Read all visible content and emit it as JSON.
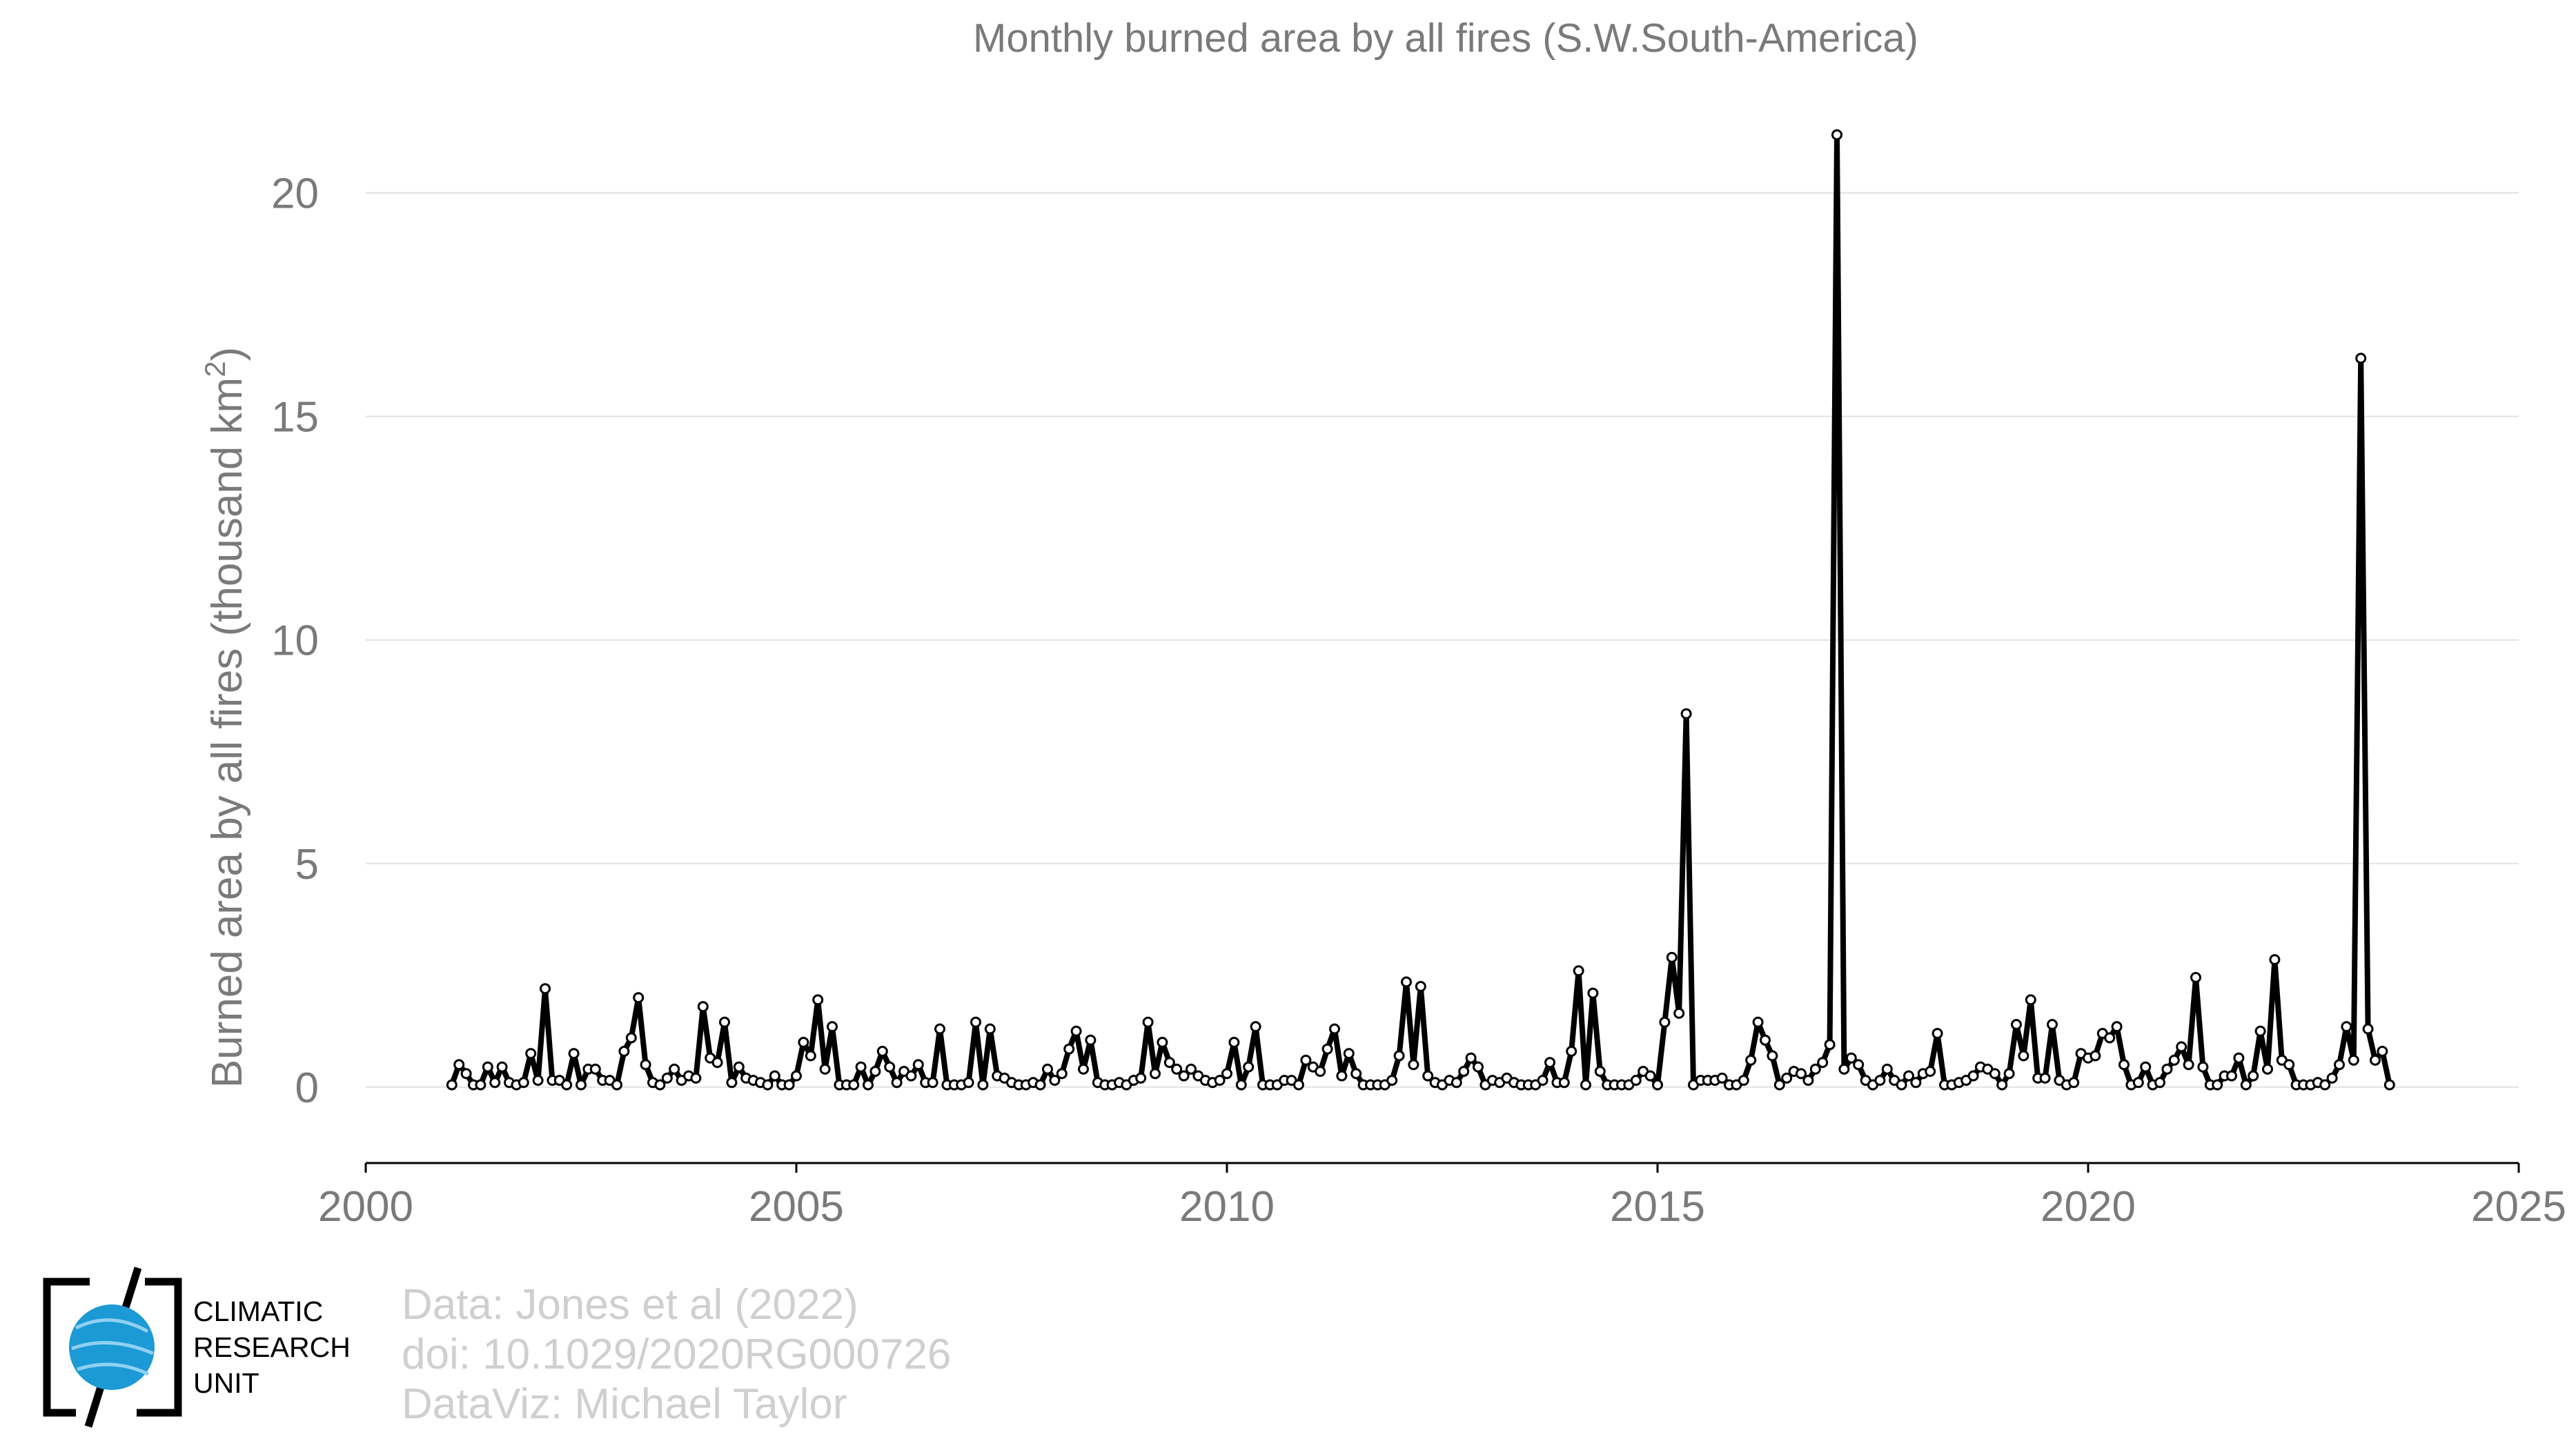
{
  "chart_data": {
    "type": "line",
    "title": "Monthly burned area by all fires (S.W.South-America)",
    "ylabel": "Burned area by all fires (thousand km",
    "ylabel_sup": "2",
    "ylabel_end": ")",
    "xlabel": "",
    "xlim": [
      2000,
      2025
    ],
    "ylim": [
      -1.7,
      22
    ],
    "x_ticks": [
      2000,
      2005,
      2010,
      2015,
      2020,
      2025
    ],
    "y_ticks": [
      0,
      5,
      10,
      15,
      20
    ],
    "x_tick_labels": [
      "2000",
      "2005",
      "2010",
      "2015",
      "2020",
      "2025"
    ],
    "y_tick_labels": [
      "0",
      "5",
      "10",
      "15",
      "20"
    ],
    "grid": "horizontal",
    "legend": "none",
    "line_color": "#000000",
    "marker": "open-circle",
    "series": [
      {
        "start": "2001-01",
        "values": [
          0.05,
          0.5,
          0.3,
          0.05,
          0.05,
          0.45,
          0.1,
          0.45,
          0.1,
          0.05,
          0.1,
          0.75,
          0.15,
          2.2,
          0.15,
          0.15,
          0.05,
          0.75,
          0.05,
          0.4,
          0.4,
          0.15,
          0.15,
          0.05,
          0.8,
          1.1,
          2.0,
          0.5,
          0.1,
          0.05,
          0.2,
          0.4,
          0.15,
          0.25,
          0.2,
          1.8,
          0.65,
          0.55,
          1.45,
          0.1,
          0.45,
          0.2,
          0.15,
          0.1,
          0.05,
          0.25,
          0.05,
          0.05,
          0.25,
          1.0,
          0.7,
          1.95,
          0.4,
          1.35,
          0.05,
          0.05,
          0.05,
          0.45,
          0.05,
          0.35,
          0.8,
          0.45,
          0.1,
          0.35,
          0.25,
          0.5,
          0.1,
          0.1,
          1.3,
          0.05,
          0.05,
          0.05,
          0.1,
          1.45,
          0.05,
          1.3,
          0.25,
          0.2,
          0.1,
          0.05,
          0.05,
          0.1,
          0.05,
          0.4,
          0.15,
          0.3,
          0.85,
          1.25,
          0.4,
          1.05,
          0.1,
          0.05,
          0.05,
          0.1,
          0.05,
          0.15,
          0.2,
          1.45,
          0.3,
          1.0,
          0.55,
          0.4,
          0.25,
          0.4,
          0.25,
          0.15,
          0.1,
          0.15,
          0.3,
          1.0,
          0.05,
          0.45,
          1.35,
          0.05,
          0.05,
          0.05,
          0.15,
          0.15,
          0.05,
          0.6,
          0.45,
          0.35,
          0.85,
          1.3,
          0.25,
          0.75,
          0.3,
          0.05,
          0.05,
          0.05,
          0.05,
          0.15,
          0.7,
          2.35,
          0.5,
          2.25,
          0.25,
          0.1,
          0.05,
          0.15,
          0.1,
          0.35,
          0.65,
          0.45,
          0.05,
          0.15,
          0.1,
          0.2,
          0.1,
          0.05,
          0.05,
          0.05,
          0.15,
          0.55,
          0.1,
          0.1,
          0.8,
          2.6,
          0.05,
          2.1,
          0.35,
          0.05,
          0.05,
          0.05,
          0.05,
          0.15,
          0.35,
          0.25,
          0.05,
          1.45,
          2.9,
          1.65,
          8.35,
          0.05,
          0.15,
          0.15,
          0.15,
          0.2,
          0.05,
          0.05,
          0.15,
          0.6,
          1.45,
          1.05,
          0.7,
          0.05,
          0.2,
          0.35,
          0.3,
          0.15,
          0.4,
          0.55,
          0.95,
          21.3,
          0.4,
          0.65,
          0.5,
          0.15,
          0.05,
          0.15,
          0.4,
          0.15,
          0.05,
          0.25,
          0.1,
          0.3,
          0.35,
          1.2,
          0.05,
          0.05,
          0.1,
          0.15,
          0.25,
          0.45,
          0.4,
          0.3,
          0.05,
          0.3,
          1.4,
          0.7,
          1.95,
          0.2,
          0.2,
          1.4,
          0.15,
          0.05,
          0.1,
          0.75,
          0.65,
          0.7,
          1.2,
          1.1,
          1.35,
          0.5,
          0.05,
          0.1,
          0.45,
          0.05,
          0.1,
          0.4,
          0.6,
          0.9,
          0.5,
          2.45,
          0.45,
          0.05,
          0.05,
          0.25,
          0.25,
          0.65,
          0.05,
          0.25,
          1.25,
          0.4,
          2.85,
          0.6,
          0.5,
          0.05,
          0.05,
          0.05,
          0.1,
          0.05,
          0.2,
          0.5,
          1.35,
          0.6,
          16.3,
          1.3,
          0.6,
          0.8,
          0.05
        ]
      }
    ]
  },
  "credits": {
    "line1": "Data: Jones et al (2022)",
    "line2": "doi: 10.1029/2020RG000726",
    "line3": "DataViz: Michael Taylor"
  },
  "logo": {
    "line1": "CLIMATIC",
    "line2": "RESEARCH",
    "line3": "UNIT",
    "globe_color": "#1b9ad6"
  }
}
